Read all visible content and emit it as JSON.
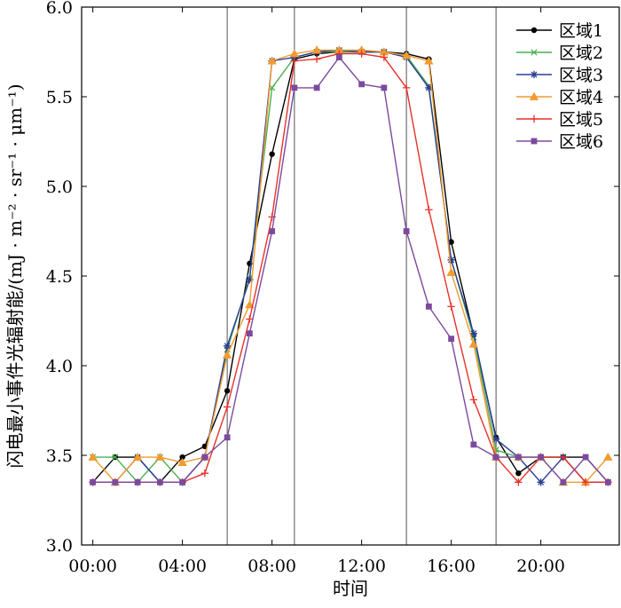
{
  "chart_data": {
    "type": "line",
    "xlabel": "时间",
    "ylabel": "闪电最小事件光辐射能/(mJ · m⁻² · sr⁻¹ · μm⁻¹)",
    "xlim": [
      -0.5,
      23.5
    ],
    "ylim": [
      3.0,
      6.0
    ],
    "x_ticks": [
      0,
      4,
      8,
      12,
      16,
      20
    ],
    "x_tick_labels": [
      "00:00",
      "04:00",
      "08:00",
      "12:00",
      "16:00",
      "20:00"
    ],
    "y_ticks": [
      3.0,
      3.5,
      4.0,
      4.5,
      5.0,
      5.5,
      6.0
    ],
    "y_tick_labels": [
      "3.0",
      "3.5",
      "4.0",
      "4.5",
      "5.0",
      "5.5",
      "6.0"
    ],
    "vertical_lines": [
      6,
      9,
      14,
      18
    ],
    "legend_position": "top-right",
    "x": [
      0,
      1,
      2,
      3,
      4,
      5,
      6,
      7,
      8,
      9,
      10,
      11,
      12,
      13,
      14,
      15,
      16,
      17,
      18,
      19,
      20,
      21,
      22,
      23
    ],
    "series": [
      {
        "name": "区域1",
        "color": "#000000",
        "marker": "circle",
        "values": [
          3.35,
          3.49,
          3.49,
          3.35,
          3.49,
          3.55,
          3.86,
          4.57,
          5.18,
          5.71,
          5.74,
          5.75,
          5.75,
          5.75,
          5.74,
          5.71,
          4.69,
          4.17,
          3.6,
          3.4,
          3.49,
          3.49,
          3.49,
          3.35
        ]
      },
      {
        "name": "区域2",
        "color": "#4CAF50",
        "marker": "x",
        "values": [
          3.49,
          3.49,
          3.35,
          3.49,
          3.35,
          3.49,
          4.09,
          4.49,
          5.55,
          5.72,
          5.75,
          5.75,
          5.75,
          5.75,
          5.73,
          5.56,
          4.59,
          4.16,
          3.53,
          3.49,
          3.49,
          3.49,
          3.35,
          3.35
        ]
      },
      {
        "name": "区域3",
        "color": "#2B3E9A",
        "marker": "star",
        "values": [
          3.35,
          3.35,
          3.49,
          3.35,
          3.35,
          3.49,
          4.11,
          4.48,
          5.7,
          5.72,
          5.75,
          5.76,
          5.75,
          5.75,
          5.72,
          5.55,
          4.59,
          4.18,
          3.59,
          3.49,
          3.35,
          3.49,
          3.35,
          3.35
        ]
      },
      {
        "name": "区域4",
        "color": "#F29A2E",
        "marker": "triangle",
        "values": [
          3.49,
          3.35,
          3.49,
          3.49,
          3.46,
          3.49,
          4.06,
          4.34,
          5.7,
          5.74,
          5.76,
          5.76,
          5.76,
          5.75,
          5.73,
          5.7,
          4.52,
          4.12,
          3.49,
          3.49,
          3.49,
          3.35,
          3.35,
          3.49
        ]
      },
      {
        "name": "区域5",
        "color": "#E8312A",
        "marker": "plus",
        "values": [
          3.35,
          3.35,
          3.35,
          3.35,
          3.35,
          3.4,
          3.77,
          4.26,
          4.83,
          5.7,
          5.71,
          5.74,
          5.74,
          5.72,
          5.55,
          4.87,
          4.33,
          3.81,
          3.49,
          3.35,
          3.49,
          3.49,
          3.35,
          3.35
        ]
      },
      {
        "name": "区域6",
        "color": "#7B4A9E",
        "marker": "square",
        "values": [
          3.35,
          3.35,
          3.35,
          3.35,
          3.35,
          3.49,
          3.6,
          4.18,
          4.75,
          5.55,
          5.55,
          5.72,
          5.57,
          5.55,
          4.75,
          4.33,
          4.15,
          3.56,
          3.49,
          3.49,
          3.49,
          3.35,
          3.49,
          3.35
        ]
      }
    ]
  }
}
